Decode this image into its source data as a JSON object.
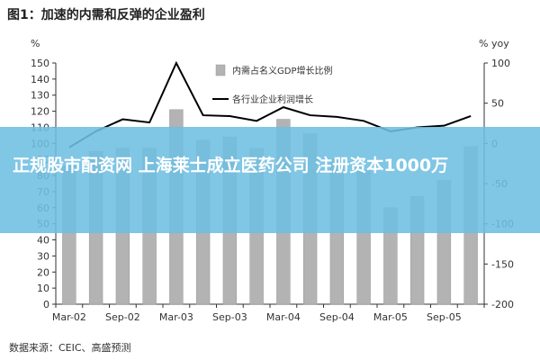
{
  "title": "图1：加速的内需和反弹的企业盈利",
  "source": "数据来源：CEIC、高盛预测",
  "banner": "正规股市配资网 上海莱士成立医药公司 注册资本1000万",
  "chart_data": {
    "type": "bar",
    "left_unit": "%",
    "right_unit": "% yoy",
    "categories": [
      "Mar-02",
      "Jun-02",
      "Sep-02",
      "Dec-02",
      "Mar-03",
      "Jun-03",
      "Sep-03",
      "Dec-03",
      "Mar-04",
      "Jun-04",
      "Sep-04",
      "Dec-04",
      "Mar-05",
      "Jun-05",
      "Sep-05",
      "Dec-05"
    ],
    "x_tick_labels": [
      "Mar-02",
      "Sep-02",
      "Mar-03",
      "Sep-03",
      "Mar-04",
      "Sep-04",
      "Mar-05",
      "Sep-05"
    ],
    "series": [
      {
        "name": "内需占名义GDP增长比例",
        "axis": "left",
        "type": "bar",
        "color": "#b3b3b3",
        "values": [
          86,
          95,
          97,
          97,
          121,
          102,
          104,
          97,
          115,
          106,
          90,
          83,
          60,
          67,
          77,
          98
        ]
      },
      {
        "name": "各行业企业利润增长",
        "axis": "right",
        "type": "line",
        "color": "#000000",
        "values": [
          -5,
          15,
          30,
          26,
          100,
          35,
          34,
          28,
          45,
          35,
          33,
          28,
          15,
          20,
          22,
          34
        ]
      }
    ],
    "left_axis": {
      "ylim": [
        0,
        150
      ],
      "ticks": [
        0,
        10,
        20,
        30,
        40,
        50,
        60,
        70,
        80,
        90,
        100,
        110,
        120,
        130,
        140,
        150
      ]
    },
    "right_axis": {
      "ylim": [
        -200,
        100
      ],
      "ticks": [
        -200,
        -150,
        -100,
        -50,
        0,
        50,
        100
      ]
    },
    "grid": false,
    "legend_position": "top-center"
  }
}
